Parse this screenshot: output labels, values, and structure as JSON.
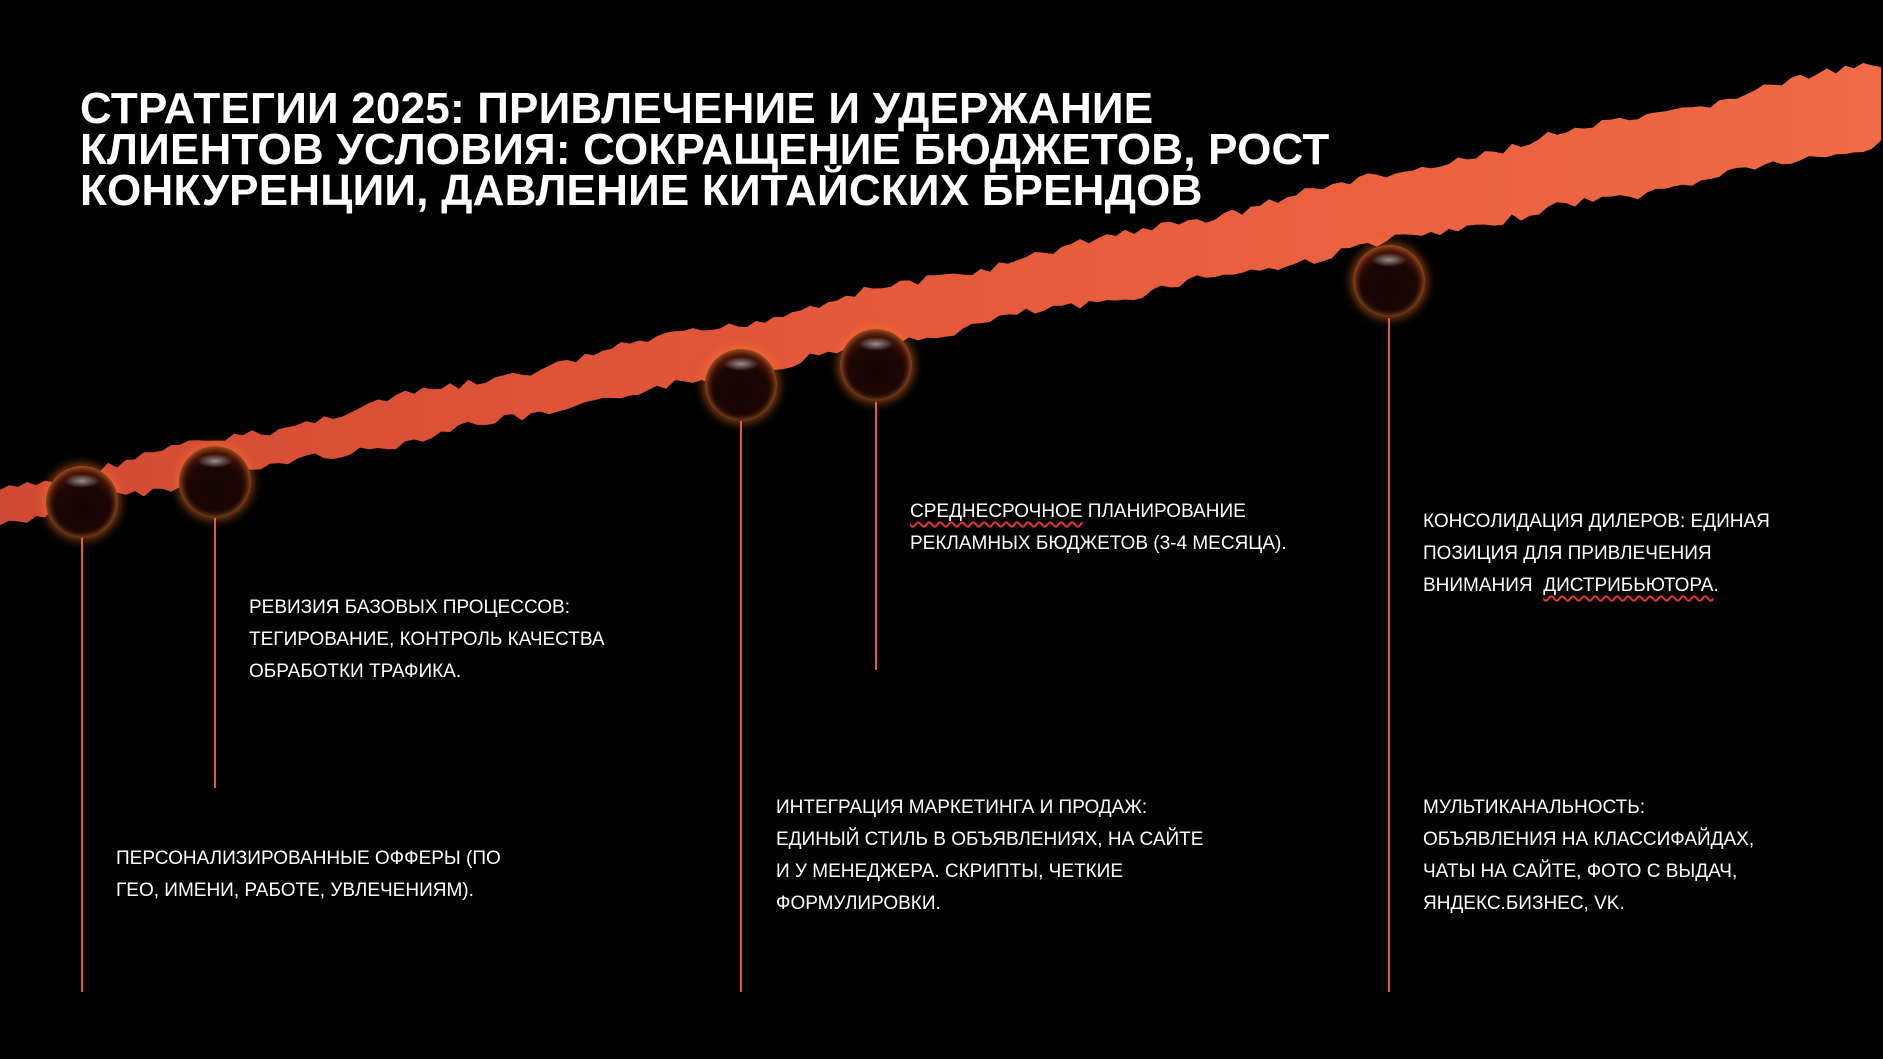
{
  "title": {
    "line1": "СТРАТЕГИИ 2025: ПРИВЛЕЧЕНИЕ И УДЕРЖАНИЕ",
    "line2": "КЛИЕНТОВ УСЛОВИЯ: СОКРАЩЕНИЕ БЮДЖЕТОВ, РОСТ",
    "line3": "КОНКУРЕНЦИИ, ДАВЛЕНИЕ КИТАЙСКИХ БРЕНДОВ"
  },
  "colors": {
    "background": "#000000",
    "band": "#e65a3c",
    "connector": "#e2583a",
    "text": "#ffffff",
    "spellcheck": "#e0362b"
  },
  "points": {
    "p1": {
      "lines": [
        "ПЕРСОНАЛИЗИРОВАННЫЕ ОФФЕРЫ (ПО",
        "ГЕО, ИМЕНИ, РАБОТЕ, УВЛЕЧЕНИЯМ)."
      ]
    },
    "p2": {
      "lines": [
        "РЕВИЗИЯ БАЗОВЫХ ПРОЦЕССОВ:",
        "ТЕГИРОВАНИЕ, КОНТРОЛЬ КАЧЕСТВА",
        "ОБРАБОТКИ ТРАФИКА."
      ]
    },
    "p3": {
      "lines": [
        "ИНТЕГРАЦИЯ МАРКЕТИНГА И ПРОДАЖ:",
        "ЕДИНЫЙ СТИЛЬ В ОБЪЯВЛЕНИЯХ, НА САЙТЕ",
        "И У МЕНЕДЖЕРА. СКРИПТЫ, ЧЕТКИЕ",
        "ФОРМУЛИРОВКИ."
      ]
    },
    "p4": {
      "lines": [
        "СРЕДНЕСРОЧНОЕ",
        " ПЛАНИРОВАНИЕ",
        "РЕКЛАМНЫХ БЮДЖЕТОВ (3-4 МЕСЯЦА)."
      ]
    },
    "p5": {
      "lines": [
        "КОНСОЛИДАЦИЯ ДИЛЕРОВ: ЕДИНАЯ",
        "ПОЗИЦИЯ ДЛЯ ПРИВЛЕЧЕНИЯ",
        "ВНИМАНИЯ  ",
        "ДИСТРИБЬЮТОРА",
        "."
      ]
    },
    "p6": {
      "lines": [
        "МУЛЬТИКАНАЛЬНОСТЬ:",
        "ОБЪЯВЛЕНИЯ НА КЛАССИФАЙДАХ,",
        "ЧАТЫ НА САЙТЕ, ФОТО С ВЫДАЧ,",
        "ЯНДЕКС.БИЗНЕС, VK."
      ]
    }
  }
}
